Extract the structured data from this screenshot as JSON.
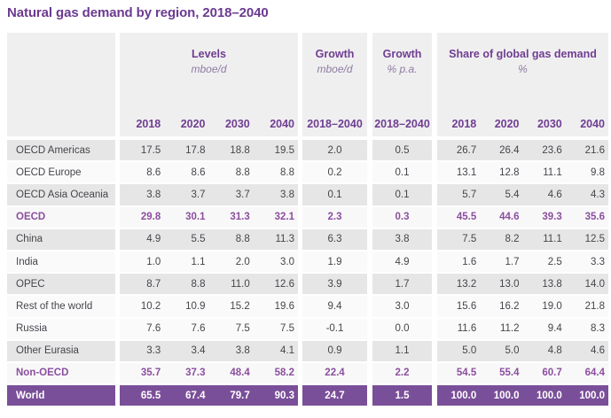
{
  "colors": {
    "accent_purple": "#6b3a91",
    "header_bg": "#f0eff0",
    "row_gray": "#e7e6e7",
    "total_text_purple": "#8a4f9e",
    "world_row_bg": "#7a4f99",
    "unit_text": "#8d7ba1"
  },
  "chart_data": {
    "type": "table",
    "title": "Natural gas demand by region, 2018–2040",
    "header": {
      "levels": {
        "label": "Levels",
        "unit": "mboe/d",
        "years": [
          "2018",
          "2020",
          "2030",
          "2040"
        ]
      },
      "growth_mboed": {
        "label": "Growth",
        "unit": "mboe/d",
        "period": "2018–2040"
      },
      "growth_pa": {
        "label": "Growth",
        "unit": "% p.a.",
        "period": "2018–2040"
      },
      "share": {
        "label": "Share of global gas demand",
        "unit": "%",
        "years": [
          "2018",
          "2020",
          "2030",
          "2040"
        ]
      }
    },
    "rows": [
      {
        "region": "OECD Americas",
        "levels": [
          "17.5",
          "17.8",
          "18.8",
          "19.5"
        ],
        "growth_mboed": "2.0",
        "growth_pa": "0.5",
        "share": [
          "26.7",
          "26.4",
          "23.6",
          "21.6"
        ]
      },
      {
        "region": "OECD Europe",
        "levels": [
          "8.6",
          "8.6",
          "8.8",
          "8.8"
        ],
        "growth_mboed": "0.2",
        "growth_pa": "0.1",
        "share": [
          "13.1",
          "12.8",
          "11.1",
          "9.8"
        ]
      },
      {
        "region": "OECD Asia Oceania",
        "levels": [
          "3.8",
          "3.7",
          "3.7",
          "3.8"
        ],
        "growth_mboed": "0.1",
        "growth_pa": "0.1",
        "share": [
          "5.7",
          "5.4",
          "4.6",
          "4.3"
        ]
      },
      {
        "region": "OECD",
        "levels": [
          "29.8",
          "30.1",
          "31.3",
          "32.1"
        ],
        "growth_mboed": "2.3",
        "growth_pa": "0.3",
        "share": [
          "45.5",
          "44.6",
          "39.3",
          "35.6"
        ]
      },
      {
        "region": "China",
        "levels": [
          "4.9",
          "5.5",
          "8.8",
          "11.3"
        ],
        "growth_mboed": "6.3",
        "growth_pa": "3.8",
        "share": [
          "7.5",
          "8.2",
          "11.1",
          "12.5"
        ]
      },
      {
        "region": "India",
        "levels": [
          "1.0",
          "1.1",
          "2.0",
          "3.0"
        ],
        "growth_mboed": "1.9",
        "growth_pa": "4.9",
        "share": [
          "1.6",
          "1.7",
          "2.5",
          "3.3"
        ]
      },
      {
        "region": "OPEC",
        "levels": [
          "8.7",
          "8.8",
          "11.0",
          "12.6"
        ],
        "growth_mboed": "3.9",
        "growth_pa": "1.7",
        "share": [
          "13.2",
          "13.0",
          "13.8",
          "14.0"
        ]
      },
      {
        "region": "Rest of the world",
        "levels": [
          "10.2",
          "10.9",
          "15.2",
          "19.6"
        ],
        "growth_mboed": "9.4",
        "growth_pa": "3.0",
        "share": [
          "15.6",
          "16.2",
          "19.0",
          "21.8"
        ]
      },
      {
        "region": "Russia",
        "levels": [
          "7.6",
          "7.6",
          "7.5",
          "7.5"
        ],
        "growth_mboed": "-0.1",
        "growth_pa": "0.0",
        "share": [
          "11.6",
          "11.2",
          "9.4",
          "8.3"
        ]
      },
      {
        "region": "Other Eurasia",
        "levels": [
          "3.3",
          "3.4",
          "3.8",
          "4.1"
        ],
        "growth_mboed": "0.9",
        "growth_pa": "1.1",
        "share": [
          "5.0",
          "5.0",
          "4.8",
          "4.6"
        ]
      },
      {
        "region": "Non-OECD",
        "levels": [
          "35.7",
          "37.3",
          "48.4",
          "58.2"
        ],
        "growth_mboed": "22.4",
        "growth_pa": "2.2",
        "share": [
          "54.5",
          "55.4",
          "60.7",
          "64.4"
        ]
      },
      {
        "region": "World",
        "levels": [
          "65.5",
          "67.4",
          "79.7",
          "90.3"
        ],
        "growth_mboed": "24.7",
        "growth_pa": "1.5",
        "share": [
          "100.0",
          "100.0",
          "100.0",
          "100.0"
        ]
      }
    ]
  }
}
